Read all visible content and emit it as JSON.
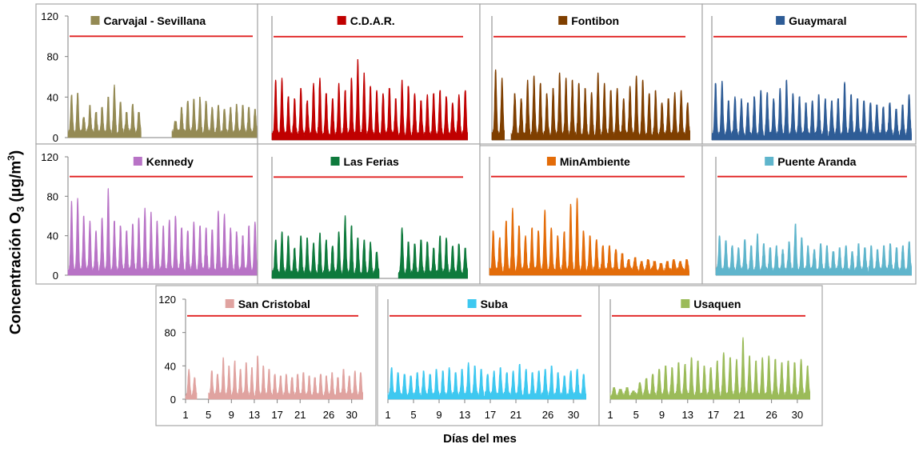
{
  "figure": {
    "ylabel_main": "Concentración O",
    "ylabel_sub": "3",
    "ylabel_unit_start": " (μg/m",
    "ylabel_unit_sup": "3",
    "ylabel_unit_end": ")",
    "xlabel": "Días del mes"
  },
  "chart_data": [
    {
      "type": "area",
      "title": "Carvajal - Sevillana",
      "color": "#948a54",
      "ylim": [
        0,
        120
      ],
      "yticks": [
        0,
        40,
        80,
        120
      ],
      "show_yticks": true,
      "show_xticks": false,
      "limit": 100,
      "x": [
        1,
        2,
        3,
        4,
        5,
        6,
        7,
        8,
        9,
        10,
        11,
        12,
        13,
        14,
        15,
        16,
        17,
        18,
        19,
        20,
        21,
        22,
        23,
        24,
        25,
        26,
        27,
        28,
        29,
        30,
        31
      ],
      "daily_max": [
        42,
        44,
        20,
        32,
        25,
        30,
        40,
        52,
        35,
        25,
        33,
        25,
        null,
        null,
        null,
        null,
        null,
        16,
        30,
        36,
        38,
        40,
        36,
        30,
        32,
        28,
        30,
        33,
        32,
        30,
        28
      ]
    },
    {
      "type": "area",
      "title": "C.D.A.R.",
      "color": "#c00000",
      "ylim": [
        0,
        120
      ],
      "yticks": [
        0,
        40,
        80,
        120
      ],
      "show_yticks": false,
      "show_xticks": false,
      "limit": 100,
      "x": [
        1,
        2,
        3,
        4,
        5,
        6,
        7,
        8,
        9,
        10,
        11,
        12,
        13,
        14,
        15,
        16,
        17,
        18,
        19,
        20,
        21,
        22,
        23,
        24,
        25,
        26,
        27,
        28,
        29,
        30,
        31
      ],
      "daily_max": [
        58,
        60,
        42,
        40,
        50,
        38,
        55,
        60,
        45,
        40,
        55,
        48,
        60,
        78,
        65,
        52,
        48,
        45,
        50,
        40,
        58,
        52,
        45,
        38,
        44,
        45,
        48,
        42,
        36,
        44,
        48
      ]
    },
    {
      "type": "area",
      "title": "Fontibon",
      "color": "#7f3f00",
      "ylim": [
        0,
        120
      ],
      "yticks": [
        0,
        40,
        80,
        120
      ],
      "show_yticks": false,
      "show_xticks": false,
      "limit": 100,
      "x": [
        1,
        2,
        3,
        4,
        5,
        6,
        7,
        8,
        9,
        10,
        11,
        12,
        13,
        14,
        15,
        16,
        17,
        18,
        19,
        20,
        21,
        22,
        23,
        24,
        25,
        26,
        27,
        28,
        29,
        30,
        31
      ],
      "daily_max": [
        68,
        60,
        null,
        45,
        40,
        58,
        62,
        55,
        45,
        50,
        65,
        60,
        58,
        55,
        50,
        46,
        65,
        55,
        48,
        50,
        40,
        52,
        62,
        58,
        45,
        48,
        36,
        40,
        46,
        48,
        36
      ]
    },
    {
      "type": "area",
      "title": "Guaymaral",
      "color": "#2e5c96",
      "ylim": [
        0,
        120
      ],
      "yticks": [
        0,
        40,
        80,
        120
      ],
      "show_yticks": false,
      "show_xticks": false,
      "limit": 100,
      "x": [
        1,
        2,
        3,
        4,
        5,
        6,
        7,
        8,
        9,
        10,
        11,
        12,
        13,
        14,
        15,
        16,
        17,
        18,
        19,
        20,
        21,
        22,
        23,
        24,
        25,
        26,
        27,
        28,
        29,
        30,
        31
      ],
      "daily_max": [
        55,
        57,
        38,
        42,
        40,
        36,
        42,
        48,
        46,
        40,
        50,
        58,
        45,
        42,
        36,
        38,
        44,
        40,
        38,
        40,
        56,
        44,
        40,
        38,
        36,
        34,
        32,
        36,
        30,
        34,
        44
      ]
    },
    {
      "type": "area",
      "title": "Kennedy",
      "color": "#b873c6",
      "ylim": [
        0,
        120
      ],
      "yticks": [
        0,
        40,
        80,
        120
      ],
      "show_yticks": true,
      "show_xticks": false,
      "limit": 100,
      "x": [
        1,
        2,
        3,
        4,
        5,
        6,
        7,
        8,
        9,
        10,
        11,
        12,
        13,
        14,
        15,
        16,
        17,
        18,
        19,
        20,
        21,
        22,
        23,
        24,
        25,
        26,
        27,
        28,
        29,
        30,
        31
      ],
      "daily_max": [
        75,
        78,
        60,
        55,
        45,
        58,
        88,
        55,
        50,
        45,
        52,
        58,
        68,
        64,
        55,
        50,
        56,
        60,
        48,
        45,
        54,
        50,
        48,
        46,
        65,
        62,
        48,
        44,
        40,
        50,
        54
      ]
    },
    {
      "type": "area",
      "title": "Las Ferias",
      "color": "#0e7a3c",
      "ylim": [
        0,
        120
      ],
      "yticks": [
        0,
        40,
        80,
        120
      ],
      "show_yticks": false,
      "show_xticks": false,
      "limit": 100,
      "x": [
        1,
        2,
        3,
        4,
        5,
        6,
        7,
        8,
        9,
        10,
        11,
        12,
        13,
        14,
        15,
        16,
        17,
        18,
        19,
        20,
        21,
        22,
        23,
        24,
        25,
        26,
        27,
        28,
        29,
        30,
        31
      ],
      "daily_max": [
        38,
        46,
        42,
        30,
        42,
        40,
        35,
        45,
        38,
        32,
        46,
        62,
        52,
        40,
        38,
        36,
        26,
        null,
        null,
        null,
        50,
        36,
        34,
        38,
        36,
        30,
        42,
        40,
        32,
        34,
        30
      ]
    },
    {
      "type": "area",
      "title": "MinAmbiente",
      "color": "#e36c09",
      "ylim": [
        0,
        120
      ],
      "yticks": [
        0,
        40,
        80,
        120
      ],
      "show_yticks": false,
      "show_xticks": false,
      "limit": 100,
      "x": [
        1,
        2,
        3,
        4,
        5,
        6,
        7,
        8,
        9,
        10,
        11,
        12,
        13,
        14,
        15,
        16,
        17,
        18,
        19,
        20,
        21,
        22,
        23,
        24,
        25,
        26,
        27,
        28,
        29,
        30,
        31
      ],
      "daily_max": [
        45,
        38,
        55,
        68,
        50,
        40,
        48,
        45,
        66,
        48,
        40,
        44,
        72,
        78,
        45,
        40,
        36,
        30,
        30,
        26,
        22,
        16,
        18,
        14,
        16,
        14,
        12,
        14,
        16,
        14,
        16
      ]
    },
    {
      "type": "area",
      "title": "Puente Aranda",
      "color": "#5fb5cc",
      "ylim": [
        0,
        120
      ],
      "yticks": [
        0,
        40,
        80,
        120
      ],
      "show_yticks": false,
      "show_xticks": false,
      "limit": 100,
      "x": [
        1,
        2,
        3,
        4,
        5,
        6,
        7,
        8,
        9,
        10,
        11,
        12,
        13,
        14,
        15,
        16,
        17,
        18,
        19,
        20,
        21,
        22,
        23,
        24,
        25,
        26,
        27,
        28,
        29,
        30,
        31
      ],
      "daily_max": [
        40,
        35,
        30,
        28,
        36,
        30,
        42,
        32,
        28,
        30,
        26,
        34,
        52,
        38,
        30,
        26,
        32,
        30,
        24,
        28,
        30,
        24,
        32,
        28,
        30,
        26,
        30,
        32,
        28,
        30,
        34
      ]
    },
    {
      "type": "area",
      "title": "San Cristobal",
      "color": "#e0a3a0",
      "ylim": [
        0,
        120
      ],
      "yticks": [
        0,
        40,
        80,
        120
      ],
      "show_yticks": true,
      "show_xticks": true,
      "limit": 100,
      "xticks": [
        1,
        5,
        9,
        13,
        17,
        21,
        26,
        30
      ],
      "x": [
        1,
        2,
        3,
        4,
        5,
        6,
        7,
        8,
        9,
        10,
        11,
        12,
        13,
        14,
        15,
        16,
        17,
        18,
        19,
        20,
        21,
        22,
        23,
        24,
        25,
        26,
        27,
        28,
        29,
        30,
        31
      ],
      "daily_max": [
        36,
        26,
        null,
        null,
        34,
        30,
        50,
        40,
        46,
        36,
        44,
        38,
        52,
        40,
        36,
        30,
        28,
        30,
        26,
        30,
        32,
        28,
        26,
        30,
        28,
        32,
        26,
        36,
        28,
        34,
        32
      ]
    },
    {
      "type": "area",
      "title": "Suba",
      "color": "#3ec8f0",
      "ylim": [
        0,
        120
      ],
      "yticks": [
        0,
        40,
        80,
        120
      ],
      "show_yticks": false,
      "show_xticks": true,
      "limit": 100,
      "xticks": [
        1,
        5,
        9,
        13,
        17,
        21,
        26,
        30
      ],
      "x": [
        1,
        2,
        3,
        4,
        5,
        6,
        7,
        8,
        9,
        10,
        11,
        12,
        13,
        14,
        15,
        16,
        17,
        18,
        19,
        20,
        21,
        22,
        23,
        24,
        25,
        26,
        27,
        28,
        29,
        30,
        31
      ],
      "daily_max": [
        38,
        32,
        30,
        28,
        32,
        34,
        30,
        36,
        34,
        38,
        32,
        36,
        44,
        40,
        36,
        30,
        34,
        38,
        32,
        34,
        42,
        36,
        32,
        34,
        36,
        40,
        32,
        28,
        34,
        36,
        30
      ]
    },
    {
      "type": "area",
      "title": "Usaquen",
      "color": "#9bbb59",
      "ylim": [
        0,
        120
      ],
      "yticks": [
        0,
        40,
        80,
        120
      ],
      "show_yticks": false,
      "show_xticks": true,
      "limit": 100,
      "xticks": [
        1,
        5,
        9,
        13,
        17,
        21,
        26,
        30
      ],
      "x": [
        1,
        2,
        3,
        4,
        5,
        6,
        7,
        8,
        9,
        10,
        11,
        12,
        13,
        14,
        15,
        16,
        17,
        18,
        19,
        20,
        21,
        22,
        23,
        24,
        25,
        26,
        27,
        28,
        29,
        30,
        31
      ],
      "daily_max": [
        14,
        12,
        14,
        10,
        20,
        25,
        30,
        36,
        40,
        38,
        44,
        42,
        50,
        46,
        40,
        38,
        46,
        56,
        50,
        48,
        74,
        52,
        46,
        50,
        52,
        48,
        44,
        46,
        44,
        48,
        40
      ]
    }
  ]
}
